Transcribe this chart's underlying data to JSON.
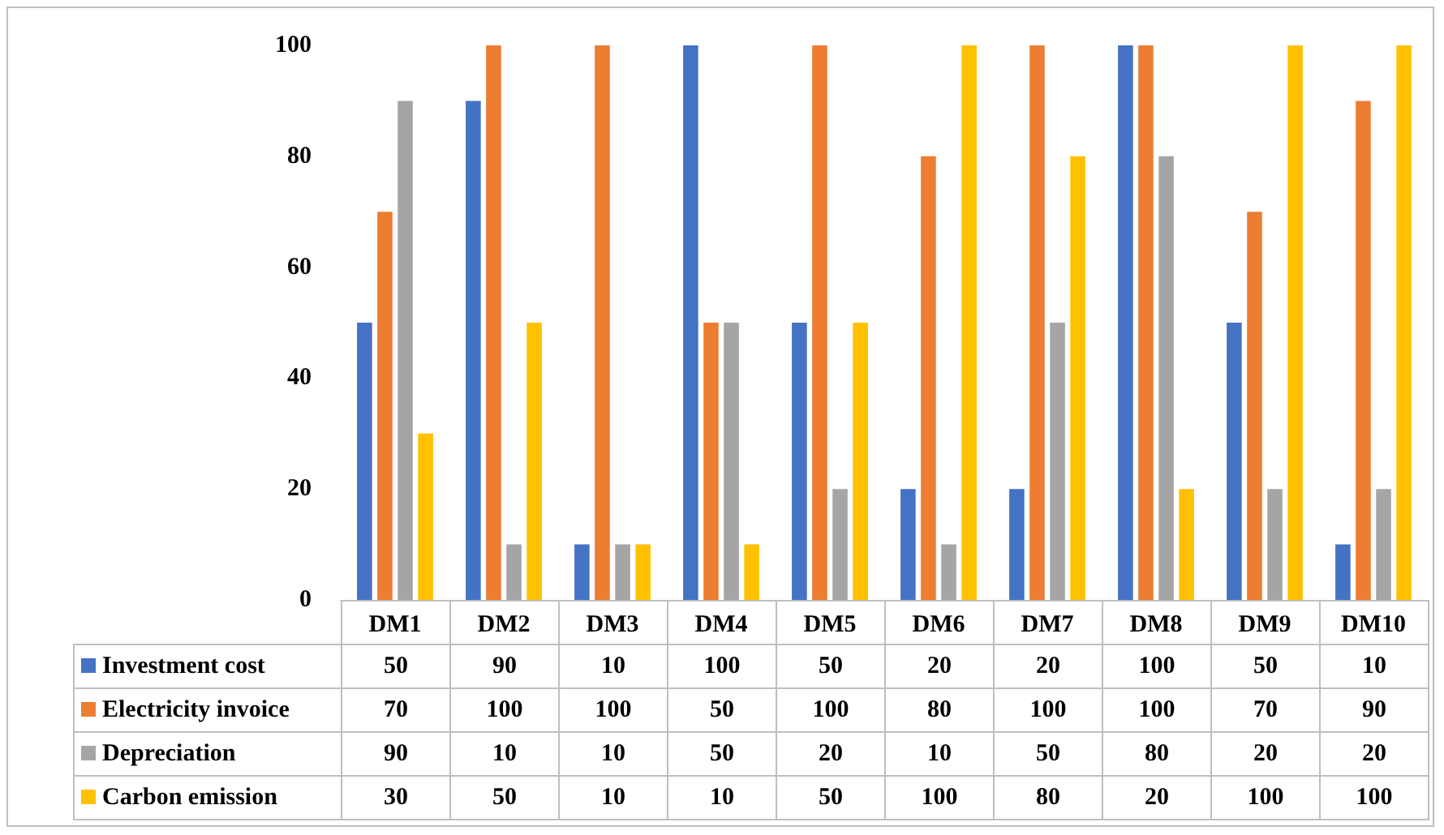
{
  "chart_data": {
    "type": "bar",
    "categories": [
      "DM1",
      "DM2",
      "DM3",
      "DM4",
      "DM5",
      "DM6",
      "DM7",
      "DM8",
      "DM9",
      "DM10"
    ],
    "series": [
      {
        "name": "Investment cost",
        "color": "#4472c4",
        "values": [
          50,
          90,
          10,
          100,
          50,
          20,
          20,
          100,
          50,
          10
        ]
      },
      {
        "name": "Electricity invoice",
        "color": "#ed7d31",
        "values": [
          70,
          100,
          100,
          50,
          100,
          80,
          100,
          100,
          70,
          90
        ]
      },
      {
        "name": "Depreciation",
        "color": "#a5a5a5",
        "values": [
          90,
          10,
          10,
          50,
          20,
          10,
          50,
          80,
          20,
          20
        ]
      },
      {
        "name": "Carbon emission",
        "color": "#ffc000",
        "values": [
          30,
          50,
          10,
          10,
          50,
          100,
          80,
          20,
          100,
          100
        ]
      }
    ],
    "ylim": [
      0,
      100
    ],
    "yticks": [
      0,
      20,
      40,
      60,
      80,
      100
    ],
    "grid": false,
    "legend": "bottom",
    "data_labels": true
  }
}
